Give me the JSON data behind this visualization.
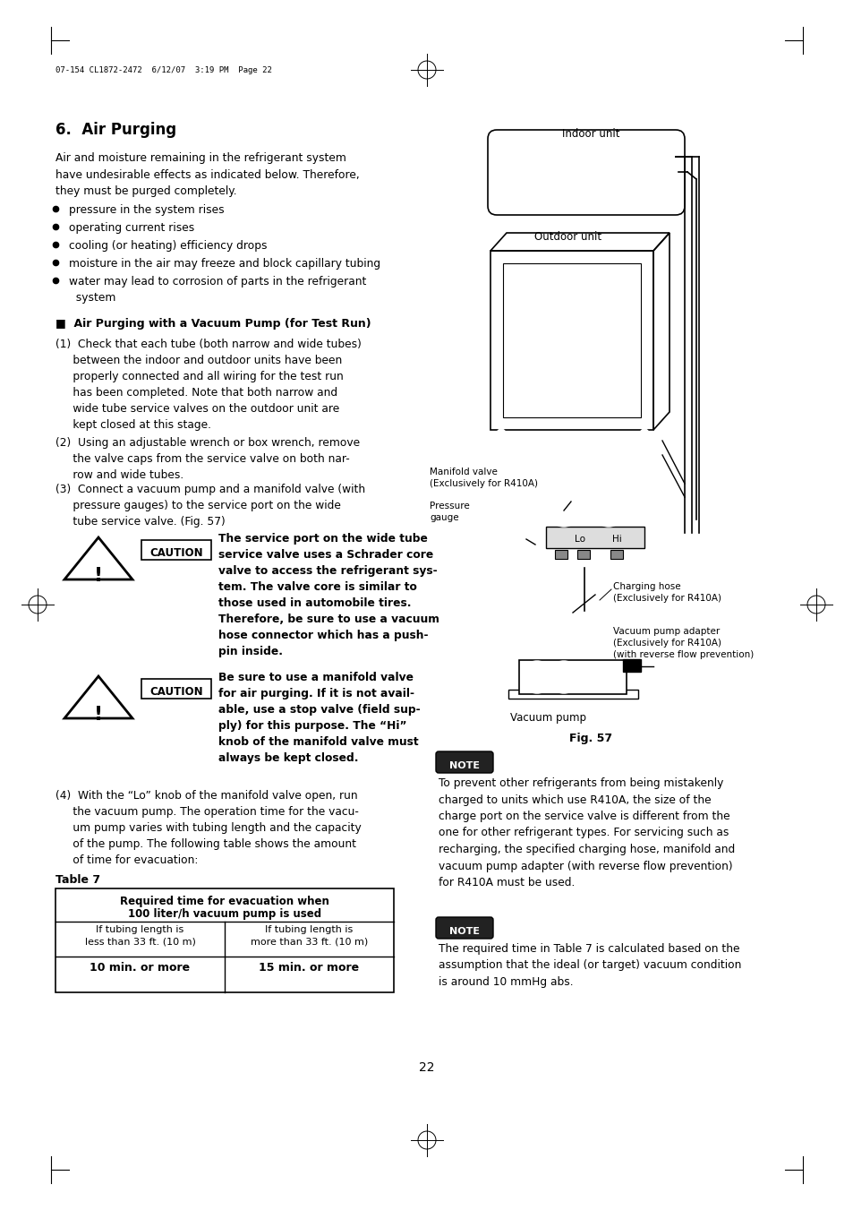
{
  "page_header": "07-154 CL1872-2472  6/12/07  3:19 PM  Page 22",
  "section_title": "6.  Air Purging",
  "intro_text": "Air and moisture remaining in the refrigerant system\nhave undesirable effects as indicated below. Therefore,\nthey must be purged completely.",
  "bullet_points": [
    "pressure in the system rises",
    "operating current rises",
    "cooling (or heating) efficiency drops",
    "moisture in the air may freeze and block capillary tubing",
    "water may lead to corrosion of parts in the refrigerant\n  system"
  ],
  "subsection_title": "■  Air Purging with a Vacuum Pump (for Test Run)",
  "step1": "(1)  Check that each tube (both narrow and wide tubes)\n     between the indoor and outdoor units have been\n     properly connected and all wiring for the test run\n     has been completed. Note that both narrow and\n     wide tube service valves on the outdoor unit are\n     kept closed at this stage.",
  "step2": "(2)  Using an adjustable wrench or box wrench, remove\n     the valve caps from the service valve on both nar-\n     row and wide tubes.",
  "step3": "(3)  Connect a vacuum pump and a manifold valve (with\n     pressure gauges) to the service port on the wide\n     tube service valve. (Fig. 57)",
  "caution1_text": "The service port on the wide tube\nservice valve uses a Schrader core\nvalve to access the refrigerant sys-\ntem. The valve core is similar to\nthose used in automobile tires.\nTherefore, be sure to use a vacuum\nhose connector which has a push-\npin inside.",
  "caution2_text": "Be sure to use a manifold valve\nfor air purging. If it is not avail-\nable, use a stop valve (field sup-\nply) for this purpose. The “Hi”\nknob of the manifold valve must\nalways be kept closed.",
  "step4": "(4)  With the “Lo” knob of the manifold valve open, run\n     the vacuum pump. The operation time for the vacu-\n     um pump varies with tubing length and the capacity\n     of the pump. The following table shows the amount\n     of time for evacuation:",
  "table_title": "Table 7",
  "table_header1": "Required time for evacuation when",
  "table_header2": "100 liter/h vacuum pump is used",
  "table_col1_header1": "If tubing length is",
  "table_col1_header2": "less than 33 ft. (10 m)",
  "table_col2_header1": "If tubing length is",
  "table_col2_header2": "more than 33 ft. (10 m)",
  "table_col1_value": "10 min. or more",
  "table_col2_value": "15 min. or more",
  "right_note_text": "To prevent other refrigerants from being mistakenly\ncharged to units which use R410A, the size of the\ncharge port on the service valve is different from the\none for other refrigerant types. For servicing such as\nrecharging, the specified charging hose, manifold and\nvacuum pump adapter (with reverse flow prevention)\nfor R410A must be used.",
  "bottom_note_text": "The required time in Table 7 is calculated based on the\nassumption that the ideal (or target) vacuum condition\nis around 10 mmHg abs.",
  "page_number": "22",
  "indoor_unit_label": "Indoor unit",
  "outdoor_unit_label": "Outdoor unit",
  "manifold_valve_label": "Manifold valve\n(Exclusively for R410A)",
  "pressure_gauge_label": "Pressure\ngauge",
  "charging_hose_label": "Charging hose\n(Exclusively for R410A)",
  "vacuum_pump_adapter_label": "Vacuum pump adapter\n(Exclusively for R410A)\n(with reverse flow prevention)",
  "vacuum_pump_label": "Vacuum pump",
  "fig_caption": "Fig. 57",
  "bg_color": "#ffffff"
}
